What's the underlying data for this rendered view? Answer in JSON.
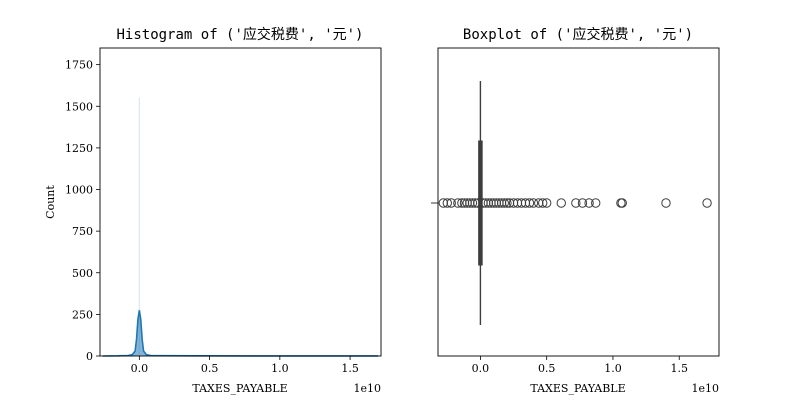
{
  "chart_data": [
    {
      "type": "histogram",
      "title": "Histogram of ('应交税费', '元')",
      "xlabel": "TAXES_PAYABLE",
      "ylabel": "Count",
      "x_offset_text": "1e10",
      "xlim": [
        -0.28,
        1.72
      ],
      "ylim": [
        0,
        1850
      ],
      "xticks": [
        0.0,
        0.5,
        1.0,
        1.5
      ],
      "xtick_labels": [
        "0.0",
        "0.5",
        "1.0",
        "1.5"
      ],
      "yticks": [
        0,
        250,
        500,
        750,
        1000,
        1250,
        1500,
        1750
      ],
      "ytick_labels": [
        "0",
        "250",
        "500",
        "750",
        "1000",
        "1250",
        "1500",
        "1750"
      ],
      "bar_color": "#1f77b4",
      "bars": [
        {
          "x0": -0.003,
          "x1": 0.003,
          "count": 1550
        }
      ],
      "kde": {
        "color": "#1f77b4",
        "x": [
          -0.26,
          -0.15,
          -0.08,
          -0.05,
          -0.03,
          -0.02,
          -0.01,
          0.0,
          0.01,
          0.02,
          0.03,
          0.05,
          0.08,
          0.15,
          0.4,
          1.0,
          1.7
        ],
        "y": [
          0,
          1,
          3,
          8,
          30,
          100,
          220,
          275,
          220,
          100,
          30,
          8,
          3,
          2,
          1,
          0.5,
          0.3
        ]
      }
    },
    {
      "type": "boxplot",
      "title": "Boxplot of ('应交税费', '元')",
      "xlabel": "TAXES_PAYABLE",
      "x_offset_text": "1e10",
      "xlim": [
        -0.32,
        1.8
      ],
      "xticks": [
        0.0,
        0.5,
        1.0,
        1.5
      ],
      "xtick_labels": [
        "0.0",
        "0.5",
        "1.0",
        "1.5"
      ],
      "box": {
        "q1": -0.002,
        "median": 0.0,
        "q3": 0.002,
        "whisker_low": -0.006,
        "whisker_high": 0.006
      },
      "outliers": [
        -0.28,
        -0.25,
        -0.22,
        -0.17,
        -0.14,
        -0.12,
        -0.1,
        -0.08,
        -0.06,
        -0.04,
        -0.02,
        0.02,
        0.04,
        0.06,
        0.08,
        0.1,
        0.12,
        0.14,
        0.16,
        0.18,
        0.2,
        0.22,
        0.25,
        0.28,
        0.31,
        0.34,
        0.37,
        0.4,
        0.44,
        0.47,
        0.5,
        0.61,
        0.72,
        0.77,
        0.82,
        0.87,
        1.06,
        1.07,
        1.4,
        1.71
      ]
    }
  ]
}
